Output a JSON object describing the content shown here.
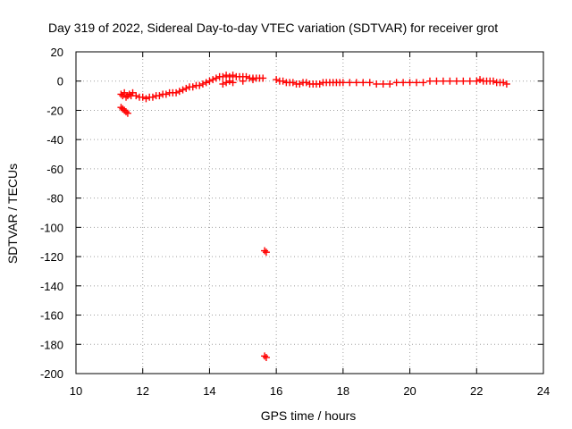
{
  "chart_data": {
    "type": "scatter",
    "title": "Day 319 of 2022, Sidereal Day-to-day VTEC variation (SDTVAR) for receiver grot",
    "xlabel": "GPS time / hours",
    "ylabel": "SDTVAR / TECUs",
    "xlim": [
      10,
      24
    ],
    "ylim": [
      -200,
      20
    ],
    "xticks": [
      "10",
      "12",
      "14",
      "16",
      "18",
      "20",
      "22",
      "24"
    ],
    "yticks": [
      "20",
      "0",
      "-20",
      "-40",
      "-60",
      "-80",
      "-100",
      "-120",
      "-140",
      "-160",
      "-180",
      "-200"
    ],
    "grid": true,
    "marker": "+",
    "color": "#ff0000",
    "series": [
      {
        "name": "SDTVAR",
        "x": [
          11.35,
          11.4,
          11.45,
          11.5,
          11.55,
          11.6,
          11.65,
          11.7,
          11.8,
          11.9,
          12.0,
          12.1,
          12.2,
          12.3,
          12.4,
          12.5,
          12.6,
          12.7,
          12.8,
          12.9,
          13.0,
          13.1,
          13.2,
          13.3,
          13.4,
          13.5,
          13.6,
          13.7,
          13.8,
          13.9,
          14.0,
          14.1,
          14.2,
          14.3,
          14.4,
          14.5,
          14.6,
          14.7,
          14.8,
          14.9,
          15.0,
          15.1,
          15.2,
          15.3,
          15.4,
          15.5,
          15.6,
          16.0,
          16.1,
          16.2,
          16.3,
          16.4,
          16.5,
          16.6,
          16.7,
          16.8,
          16.9,
          17.0,
          17.1,
          17.2,
          17.3,
          17.4,
          17.5,
          17.6,
          17.7,
          17.8,
          17.9,
          18.0,
          18.2,
          18.4,
          18.6,
          18.8,
          19.0,
          19.2,
          19.4,
          19.6,
          19.8,
          20.0,
          20.2,
          20.4,
          20.6,
          20.8,
          21.0,
          21.2,
          21.4,
          21.6,
          21.8,
          22.0,
          22.1,
          22.2,
          22.3,
          22.4,
          22.5,
          22.6,
          22.7,
          22.8,
          22.9,
          11.35,
          11.4,
          11.45,
          11.5,
          11.55,
          14.4,
          14.5,
          14.6,
          14.7,
          15.0,
          15.3,
          15.65,
          15.7,
          15.65,
          15.7
        ],
        "y": [
          -9,
          -10,
          -8,
          -11,
          -10,
          -9,
          -10,
          -8,
          -10,
          -11,
          -11,
          -12,
          -11,
          -11,
          -10,
          -10,
          -9,
          -9,
          -8,
          -8,
          -8,
          -7,
          -6,
          -5,
          -4,
          -4,
          -3,
          -3,
          -2,
          -1,
          0,
          1,
          2,
          3,
          3,
          4,
          3,
          4,
          3,
          3,
          3,
          3,
          2,
          2,
          2,
          2,
          2,
          1,
          0,
          0,
          -1,
          -1,
          -1,
          -2,
          -2,
          -1,
          -1,
          -2,
          -2,
          -2,
          -2,
          -1,
          -1,
          -1,
          -1,
          -1,
          -1,
          -1,
          -1,
          -1,
          -1,
          -1,
          -2,
          -2,
          -2,
          -1,
          -1,
          -1,
          -1,
          -1,
          0,
          0,
          0,
          0,
          0,
          0,
          0,
          0,
          1,
          0,
          0,
          0,
          0,
          -1,
          -1,
          -1,
          -2,
          -18,
          -19,
          -20,
          -21,
          -22,
          -2,
          -1,
          0,
          -1,
          0,
          1,
          -116,
          -117,
          -188,
          -189
        ]
      }
    ]
  }
}
